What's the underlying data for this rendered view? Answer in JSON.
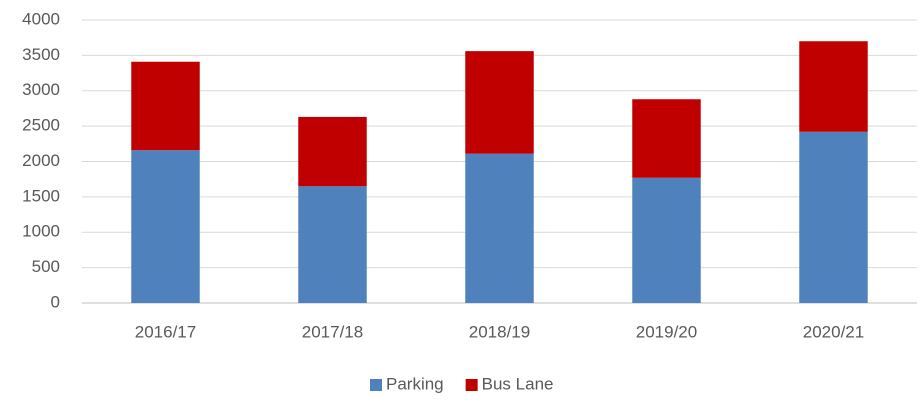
{
  "chart_data": {
    "type": "stacked_bar",
    "categories": [
      "2016/17",
      "2017/18",
      "2018/19",
      "2019/20",
      "2020/21"
    ],
    "series": [
      {
        "name": "Parking",
        "color": "#4f81bd",
        "values": [
          2160,
          1650,
          2110,
          1770,
          2420
        ]
      },
      {
        "name": "Bus Lane",
        "color": "#c00000",
        "values": [
          1250,
          980,
          1450,
          1110,
          1280
        ]
      }
    ],
    "ylim": [
      0,
      4000
    ],
    "yticks": [
      0,
      500,
      1000,
      1500,
      2000,
      2500,
      3000,
      3500,
      4000
    ],
    "grid": true,
    "legend": "bottom"
  }
}
